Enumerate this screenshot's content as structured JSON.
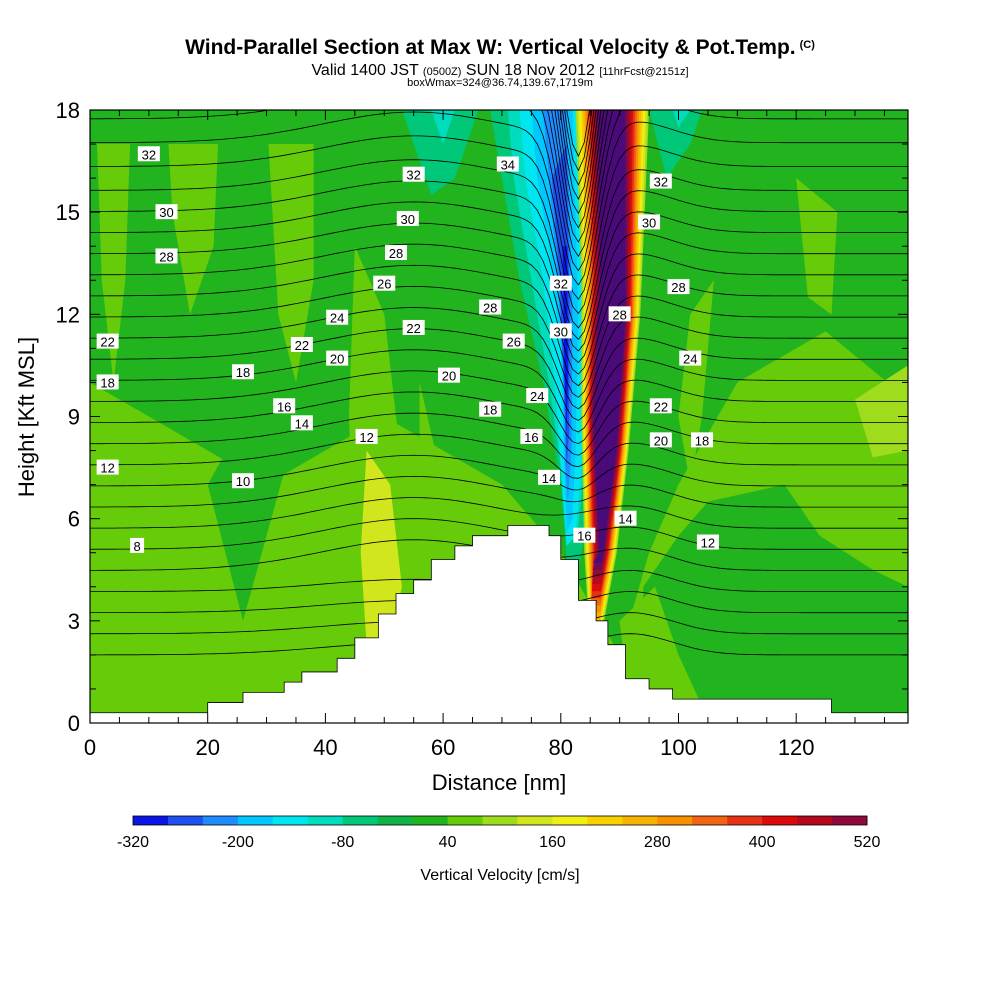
{
  "title": {
    "main": "Wind-Parallel Section at Max W: Vertical Velocity & Pot.Temp.",
    "main_suffix": "(C)",
    "valid_prefix": "Valid 1400 JST",
    "valid_utc": "(0500Z)",
    "valid_date": "SUN 18 Nov 2012",
    "forecast": "[11hrFcst@2151z]",
    "box_info": "boxWmax=324@36.74,139.67,1719m"
  },
  "colors": {
    "neg320": "#0a14e6",
    "neg280": "#1e50f0",
    "neg240": "#1e8cff",
    "neg200": "#00c8ff",
    "neg160": "#00e6f0",
    "neg120": "#00dcbe",
    "neg80": "#00c878",
    "neg40": "#10b446",
    "zero": "#22b41e",
    "pos0": "#66cc0a",
    "pos40": "#a0dc1e",
    "pos80": "#d2e61e",
    "pos120": "#f0f014",
    "pos160": "#f8d200",
    "pos200": "#f8b400",
    "pos240": "#f89000",
    "pos280": "#f06414",
    "pos320": "#e63214",
    "pos360": "#dc0a0a",
    "pos400": "#b40a1e",
    "pos440": "#8c0a3c",
    "pos480": "#6e0a5a",
    "pos520": "#4a0a7a",
    "terrain": "#ffffff",
    "contour": "#000000"
  },
  "chart_data": {
    "type": "heatmap",
    "xlabel": "Distance [nm]",
    "ylabel": "Height [Kft MSL]",
    "xlim": [
      0,
      139
    ],
    "ylim": [
      0,
      18
    ],
    "xticks": [
      "0",
      "20",
      "40",
      "60",
      "80",
      "100",
      "120"
    ],
    "yticks": [
      "0",
      "3",
      "6",
      "9",
      "12",
      "15",
      "18"
    ],
    "colorbar": {
      "label": "Vertical Velocity [cm/s]",
      "tick_labels": [
        "-320",
        "-200",
        "-80",
        "40",
        "160",
        "280",
        "400",
        "520"
      ],
      "levels": [
        -320,
        -280,
        -240,
        -200,
        -160,
        -120,
        -80,
        -40,
        0,
        40,
        80,
        120,
        160,
        200,
        240,
        280,
        320,
        360,
        400,
        440,
        480,
        520
      ]
    },
    "terrain_profile": [
      [
        0,
        0.3
      ],
      [
        20,
        0.3
      ],
      [
        20,
        0.6
      ],
      [
        26,
        0.6
      ],
      [
        26,
        0.9
      ],
      [
        33,
        0.9
      ],
      [
        33,
        1.2
      ],
      [
        36,
        1.2
      ],
      [
        36,
        1.5
      ],
      [
        42,
        1.5
      ],
      [
        42,
        1.9
      ],
      [
        45,
        1.9
      ],
      [
        45,
        2.5
      ],
      [
        49,
        2.5
      ],
      [
        49,
        3.2
      ],
      [
        52,
        3.2
      ],
      [
        52,
        3.8
      ],
      [
        55,
        3.8
      ],
      [
        55,
        4.2
      ],
      [
        58,
        4.2
      ],
      [
        58,
        4.8
      ],
      [
        62,
        4.8
      ],
      [
        62,
        5.2
      ],
      [
        65,
        5.2
      ],
      [
        65,
        5.5
      ],
      [
        71,
        5.5
      ],
      [
        71,
        5.8
      ],
      [
        78,
        5.8
      ],
      [
        78,
        5.5
      ],
      [
        80,
        5.5
      ],
      [
        80,
        4.8
      ],
      [
        83,
        4.8
      ],
      [
        83,
        3.6
      ],
      [
        86,
        3.6
      ],
      [
        86,
        3.0
      ],
      [
        88,
        3.0
      ],
      [
        88,
        2.3
      ],
      [
        91,
        2.3
      ],
      [
        91,
        1.3
      ],
      [
        95,
        1.3
      ],
      [
        95,
        1.0
      ],
      [
        99,
        1.0
      ],
      [
        99,
        0.7
      ],
      [
        126,
        0.7
      ],
      [
        126,
        0.3
      ],
      [
        139,
        0.3
      ]
    ],
    "theta_contour_labels": [
      {
        "x": 10,
        "y": 16.7,
        "v": "32"
      },
      {
        "x": 13,
        "y": 15.0,
        "v": "30"
      },
      {
        "x": 13,
        "y": 13.7,
        "v": "28"
      },
      {
        "x": 3,
        "y": 11.2,
        "v": "22"
      },
      {
        "x": 3,
        "y": 10.0,
        "v": "18"
      },
      {
        "x": 3,
        "y": 7.5,
        "v": "12"
      },
      {
        "x": 8,
        "y": 5.2,
        "v": "8"
      },
      {
        "x": 26,
        "y": 10.3,
        "v": "18"
      },
      {
        "x": 33,
        "y": 9.3,
        "v": "16"
      },
      {
        "x": 36,
        "y": 8.8,
        "v": "14"
      },
      {
        "x": 26,
        "y": 7.1,
        "v": "10"
      },
      {
        "x": 36,
        "y": 11.1,
        "v": "22"
      },
      {
        "x": 42,
        "y": 10.7,
        "v": "20"
      },
      {
        "x": 42,
        "y": 11.9,
        "v": "24"
      },
      {
        "x": 47,
        "y": 8.4,
        "v": "12"
      },
      {
        "x": 50,
        "y": 12.9,
        "v": "26"
      },
      {
        "x": 52,
        "y": 13.8,
        "v": "28"
      },
      {
        "x": 54,
        "y": 14.8,
        "v": "30"
      },
      {
        "x": 55,
        "y": 16.1,
        "v": "32"
      },
      {
        "x": 55,
        "y": 11.6,
        "v": "22"
      },
      {
        "x": 61,
        "y": 10.2,
        "v": "20"
      },
      {
        "x": 68,
        "y": 9.2,
        "v": "18"
      },
      {
        "x": 68,
        "y": 12.2,
        "v": "28"
      },
      {
        "x": 72,
        "y": 11.2,
        "v": "26"
      },
      {
        "x": 71,
        "y": 16.4,
        "v": "34"
      },
      {
        "x": 76,
        "y": 9.6,
        "v": "24"
      },
      {
        "x": 75,
        "y": 8.4,
        "v": "16"
      },
      {
        "x": 78,
        "y": 7.2,
        "v": "14"
      },
      {
        "x": 80,
        "y": 12.9,
        "v": "32"
      },
      {
        "x": 80,
        "y": 11.5,
        "v": "30"
      },
      {
        "x": 84,
        "y": 5.5,
        "v": "16"
      },
      {
        "x": 91,
        "y": 6.0,
        "v": "14"
      },
      {
        "x": 90,
        "y": 12.0,
        "v": "28"
      },
      {
        "x": 95,
        "y": 14.7,
        "v": "30"
      },
      {
        "x": 97,
        "y": 15.9,
        "v": "32"
      },
      {
        "x": 100,
        "y": 12.8,
        "v": "28"
      },
      {
        "x": 102,
        "y": 10.7,
        "v": "24"
      },
      {
        "x": 97,
        "y": 9.3,
        "v": "22"
      },
      {
        "x": 97,
        "y": 8.3,
        "v": "20"
      },
      {
        "x": 104,
        "y": 8.3,
        "v": "18"
      },
      {
        "x": 105,
        "y": 5.3,
        "v": "12"
      }
    ]
  }
}
